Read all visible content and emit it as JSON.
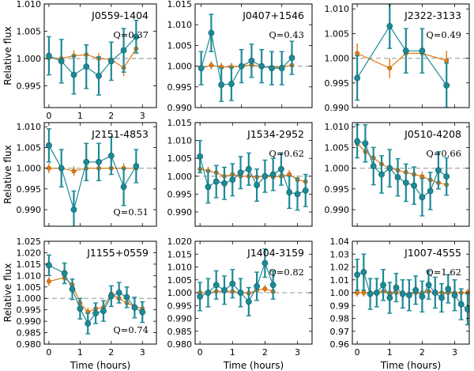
{
  "figure": {
    "ylabel": "Relative flux",
    "xlabel": "Time (hours)",
    "colors": {
      "data": "#1c8a96",
      "model": "#e07a12",
      "reference": "#aaaaaa",
      "frame": "#000000"
    }
  },
  "chart_data": [
    {
      "type": "line",
      "title": "J0559-1404",
      "q_label": "Q=0.37",
      "ylim": [
        0.991,
        1.01
      ],
      "yticks": [
        "1.010",
        "1.005",
        "1.000",
        "0.995"
      ],
      "xlim": [
        -0.15,
        3.45
      ],
      "xticks": [
        "0",
        "1",
        "2",
        "3"
      ],
      "xlabel": "",
      "ylabel": "Relative flux",
      "series": [
        {
          "name": "observed",
          "x": [
            0,
            0.4,
            0.8,
            1.2,
            1.6,
            2.0,
            2.4,
            2.8
          ],
          "y": [
            1.0005,
            0.9995,
            0.997,
            0.9985,
            0.9968,
            0.9995,
            1.0015,
            1.004
          ],
          "err": [
            0.0035,
            0.004,
            0.0035,
            0.004,
            0.0035,
            0.0035,
            0.004,
            0.003
          ]
        },
        {
          "name": "model",
          "x": [
            0,
            0.4,
            0.8,
            1.2,
            1.6,
            2.0,
            2.4,
            2.8
          ],
          "y": [
            1.0001,
            1.0,
            1.0005,
            1.0007,
            1.0,
            0.9998,
            0.9983,
            1.0018
          ],
          "err": [
            0.001,
            0.001,
            0.001,
            0.0015,
            0.001,
            0.001,
            0.0015,
            0.001
          ]
        }
      ]
    },
    {
      "type": "line",
      "title": "J0407+1546",
      "q_label": "Q=0.43",
      "ylim": [
        0.99,
        1.015
      ],
      "yticks": [
        "1.015",
        "1.010",
        "1.005",
        "1.000",
        "0.995",
        "0.990"
      ],
      "xlim": [
        -0.15,
        2.75
      ],
      "xticks": [],
      "xlabel": "",
      "ylabel": "",
      "series": [
        {
          "name": "observed",
          "x": [
            0,
            0.25,
            0.5,
            0.75,
            1.0,
            1.25,
            1.5,
            1.75,
            2.0,
            2.25
          ],
          "y": [
            0.9995,
            1.008,
            0.9955,
            0.9957,
            1.0,
            1.0013,
            1.0,
            0.9995,
            0.9995,
            1.002
          ],
          "err": [
            0.004,
            0.0045,
            0.004,
            0.004,
            0.004,
            0.004,
            0.004,
            0.004,
            0.004,
            0.004
          ]
        },
        {
          "name": "model",
          "x": [
            0,
            0.25,
            0.5,
            0.75,
            1.0,
            1.25,
            1.5,
            1.75,
            2.0,
            2.25
          ],
          "y": [
            0.9995,
            1.0002,
            0.9998,
            0.9998,
            1.0,
            1.0003,
            0.9998,
            0.9997,
            0.9998,
            1.0002
          ],
          "err": [
            0.001,
            0.001,
            0.001,
            0.001,
            0.001,
            0.001,
            0.001,
            0.001,
            0.001,
            0.001
          ]
        }
      ]
    },
    {
      "type": "line",
      "title": "J2322-3133",
      "q_label": "Q=0.49",
      "ylim": [
        0.99,
        1.011
      ],
      "yticks": [
        "1.010",
        "1.005",
        "1.000",
        "0.995",
        "0.990"
      ],
      "xlim": [
        -0.15,
        3.45
      ],
      "xticks": [],
      "xlabel": "",
      "ylabel": "",
      "series": [
        {
          "name": "observed",
          "x": [
            0,
            1,
            1.5,
            2,
            2.75
          ],
          "y": [
            0.996,
            1.0065,
            1.0015,
            1.0015,
            0.9945
          ],
          "err": [
            0.0045,
            0.0045,
            0.0045,
            0.0045,
            0.0045
          ]
        },
        {
          "name": "model",
          "x": [
            0,
            1,
            1.5,
            2,
            2.75
          ],
          "y": [
            1.001,
            0.998,
            1.001,
            1.001,
            0.9995
          ],
          "err": [
            0.002,
            0.002,
            0.002,
            0.002,
            0.002
          ]
        }
      ]
    },
    {
      "type": "line",
      "title": "J2151-4853",
      "q_label": "Q=0.51",
      "ylim": [
        0.986,
        1.011
      ],
      "yticks": [
        "1.010",
        "1.005",
        "1.000",
        "0.995",
        "0.990"
      ],
      "xlim": [
        -0.15,
        3.45
      ],
      "xticks": [],
      "xlabel": "",
      "ylabel": "Relative flux",
      "series": [
        {
          "name": "observed",
          "x": [
            0,
            0.4,
            0.8,
            1.2,
            1.6,
            2.0,
            2.4,
            2.8
          ],
          "y": [
            1.0055,
            1.0,
            0.99,
            1.0015,
            1.0015,
            1.003,
            0.9955,
            1.0005
          ],
          "err": [
            0.004,
            0.0045,
            0.0045,
            0.0045,
            0.0045,
            0.0045,
            0.0045,
            0.004
          ]
        },
        {
          "name": "model",
          "x": [
            0,
            0.4,
            0.8,
            1.2,
            1.6,
            2.0,
            2.4,
            2.8
          ],
          "y": [
            1.0,
            1.0,
            0.9993,
            1.0,
            1.0,
            1.0,
            1.0,
            1.0
          ],
          "err": [
            0.0012,
            0.0012,
            0.0012,
            0.0012,
            0.0012,
            0.0012,
            0.0012,
            0.0012
          ]
        }
      ]
    },
    {
      "type": "line",
      "title": "J1534-2952",
      "q_label": "Q=0.62",
      "ylim": [
        0.986,
        1.015
      ],
      "yticks": [
        "1.015",
        "1.010",
        "1.005",
        "1.000",
        "0.995",
        "0.990"
      ],
      "xlim": [
        -0.15,
        3.45
      ],
      "xticks": [],
      "xlabel": "",
      "ylabel": "",
      "series": [
        {
          "name": "observed",
          "x": [
            0,
            0.25,
            0.5,
            0.75,
            1.0,
            1.25,
            1.5,
            1.75,
            2.0,
            2.25,
            2.5,
            2.75,
            3.0,
            3.25
          ],
          "y": [
            1.0055,
            0.997,
            0.9985,
            0.998,
            0.999,
            1.001,
            1.002,
            0.9975,
            1.0,
            1.0005,
            1.002,
            0.9955,
            0.995,
            0.996
          ],
          "err": [
            0.0045,
            0.0045,
            0.0045,
            0.0045,
            0.0045,
            0.0045,
            0.0045,
            0.0045,
            0.0045,
            0.0045,
            0.0045,
            0.0045,
            0.0045,
            0.0045
          ]
        },
        {
          "name": "model",
          "x": [
            0,
            0.25,
            0.5,
            0.75,
            1.0,
            1.25,
            1.5,
            1.75,
            2.0,
            2.25,
            2.5,
            2.75,
            3.0,
            3.25
          ],
          "y": [
            1.002,
            1.0015,
            1.001,
            1.0,
            1.0005,
            1.0,
            1.0,
            0.9998,
            1.0,
            0.9998,
            1.0,
            1.0005,
            0.999,
            0.9985
          ],
          "err": [
            0.0012,
            0.0012,
            0.0012,
            0.0012,
            0.0012,
            0.0012,
            0.0012,
            0.0012,
            0.0012,
            0.0012,
            0.0012,
            0.0012,
            0.0012,
            0.0012
          ]
        }
      ]
    },
    {
      "type": "line",
      "title": "J0510-4208",
      "q_label": "Q=0.66",
      "ylim": [
        0.986,
        1.011
      ],
      "yticks": [
        "1.010",
        "1.005",
        "1.000",
        "0.995",
        "0.990"
      ],
      "xlim": [
        -0.15,
        3.45
      ],
      "xticks": [],
      "xlabel": "",
      "ylabel": "",
      "series": [
        {
          "name": "observed",
          "x": [
            0,
            0.25,
            0.5,
            0.75,
            1.0,
            1.25,
            1.5,
            1.75,
            2.0,
            2.25,
            2.5,
            2.75
          ],
          "y": [
            1.0065,
            1.006,
            1.0005,
            0.9985,
            1.0,
            0.9978,
            0.9965,
            0.9958,
            0.993,
            0.9945,
            0.9995,
            0.998
          ],
          "err": [
            0.004,
            0.0045,
            0.0045,
            0.0045,
            0.0045,
            0.0045,
            0.0045,
            0.0045,
            0.0045,
            0.0045,
            0.0045,
            0.0045
          ]
        },
        {
          "name": "model",
          "x": [
            0,
            0.25,
            0.5,
            0.75,
            1.0,
            1.25,
            1.5,
            1.75,
            2.0,
            2.25,
            2.5,
            2.75
          ],
          "y": [
            1.006,
            1.004,
            1.0025,
            1.001,
            1.0,
            0.9995,
            0.999,
            0.9985,
            0.998,
            0.9972,
            0.9965,
            0.996
          ],
          "err": [
            0.0012,
            0.0012,
            0.0012,
            0.0012,
            0.0012,
            0.0012,
            0.0012,
            0.0012,
            0.0012,
            0.0012,
            0.0012,
            0.0012
          ]
        }
      ]
    },
    {
      "type": "line",
      "title": "J1155+0559",
      "q_label": "Q=0.74",
      "ylim": [
        0.98,
        1.025
      ],
      "yticks": [
        "1.025",
        "1.020",
        "1.015",
        "1.010",
        "1.005",
        "1.000",
        "0.995",
        "0.990",
        "0.985",
        "0.980"
      ],
      "xlim": [
        -0.15,
        3.45
      ],
      "xticks": [
        "0",
        "1",
        "2",
        "3"
      ],
      "xlabel": "Time (hours)",
      "ylabel": "Relative flux",
      "series": [
        {
          "name": "observed",
          "x": [
            0,
            0.5,
            0.75,
            1.0,
            1.25,
            1.5,
            1.75,
            2.0,
            2.25,
            2.5,
            2.75,
            3.0
          ],
          "y": [
            1.0145,
            1.011,
            1.004,
            0.9955,
            0.989,
            0.9935,
            0.9945,
            1.001,
            1.0025,
            1.0005,
            0.996,
            0.994
          ],
          "err": [
            0.0045,
            0.0045,
            0.0045,
            0.0045,
            0.0045,
            0.0045,
            0.0045,
            0.0045,
            0.0045,
            0.0045,
            0.0045,
            0.0045
          ]
        },
        {
          "name": "model",
          "x": [
            0,
            0.5,
            0.75,
            1.0,
            1.25,
            1.5,
            1.75,
            2.0,
            2.25,
            2.5,
            2.75,
            3.0
          ],
          "y": [
            1.0075,
            1.009,
            1.006,
            0.998,
            0.994,
            0.9955,
            0.996,
            1.002,
            1.0,
            0.998,
            0.9965,
            0.9955
          ],
          "err": [
            0.002,
            0.002,
            0.002,
            0.002,
            0.002,
            0.002,
            0.002,
            0.002,
            0.002,
            0.002,
            0.002,
            0.002
          ]
        }
      ]
    },
    {
      "type": "line",
      "title": "J1404-3159",
      "q_label": "Q=0.82",
      "ylim": [
        0.98,
        1.02
      ],
      "yticks": [
        "1.020",
        "1.015",
        "1.010",
        "1.005",
        "1.000",
        "0.995",
        "0.990",
        "0.985",
        "0.980"
      ],
      "xlim": [
        -0.15,
        3.45
      ],
      "xticks": [
        "0",
        "1",
        "2",
        "3"
      ],
      "xlabel": "Time (hours)",
      "ylabel": "",
      "series": [
        {
          "name": "observed",
          "x": [
            0,
            0.25,
            0.5,
            0.75,
            1.0,
            1.25,
            1.5,
            1.75,
            2.0,
            2.25
          ],
          "y": [
            0.9985,
            1.0,
            1.003,
            1.001,
            1.0035,
            1.0,
            0.9965,
            1.0025,
            1.0115,
            1.003
          ],
          "err": [
            0.0055,
            0.0055,
            0.0055,
            0.0055,
            0.0055,
            0.0055,
            0.0055,
            0.0055,
            0.0055,
            0.0055
          ]
        },
        {
          "name": "model",
          "x": [
            0,
            0.25,
            0.5,
            0.75,
            1.0,
            1.25,
            1.5,
            1.75,
            2.0,
            2.25
          ],
          "y": [
            1.0,
            1.0,
            1.0005,
            1.0005,
            1.0005,
            1.0,
            0.9998,
            1.001,
            1.0015,
            1.0005
          ],
          "err": [
            0.0015,
            0.0015,
            0.0015,
            0.0015,
            0.0015,
            0.0015,
            0.0015,
            0.0015,
            0.0015,
            0.0015
          ]
        }
      ]
    },
    {
      "type": "line",
      "title": "J1007-4555",
      "q_label": "Q=1.62",
      "ylim": [
        0.96,
        1.04
      ],
      "yticks": [
        "1.04",
        "1.03",
        "1.02",
        "1.01",
        "1.00",
        "0.99",
        "0.98",
        "0.97",
        "0.96"
      ],
      "xlim": [
        -0.15,
        3.45
      ],
      "xticks": [
        "0",
        "1",
        "2",
        "3"
      ],
      "xlabel": "Time (hours)",
      "ylabel": "",
      "series": [
        {
          "name": "observed",
          "x": [
            0,
            0.2,
            0.4,
            0.6,
            0.8,
            1.0,
            1.2,
            1.4,
            1.6,
            1.8,
            2.0,
            2.2,
            2.4,
            2.6,
            2.8,
            3.0,
            3.2,
            3.4
          ],
          "y": [
            1.014,
            1.016,
            0.999,
            1.0,
            1.006,
            0.996,
            1.004,
            0.999,
            0.998,
            1.002,
            0.997,
            1.006,
            1.0,
            0.996,
            1.003,
            0.998,
            0.991,
            0.987
          ],
          "err": [
            0.012,
            0.014,
            0.012,
            0.011,
            0.012,
            0.012,
            0.011,
            0.011,
            0.012,
            0.011,
            0.012,
            0.011,
            0.012,
            0.011,
            0.011,
            0.012,
            0.012,
            0.012
          ]
        },
        {
          "name": "model",
          "x": [
            0,
            0.2,
            0.4,
            0.6,
            0.8,
            1.0,
            1.2,
            1.4,
            1.6,
            1.8,
            2.0,
            2.2,
            2.4,
            2.6,
            2.8,
            3.0,
            3.2,
            3.4
          ],
          "y": [
            1.0,
            1.0,
            1.0,
            1.0,
            1.001,
            1.0,
            1.0,
            1.0,
            0.999,
            1.0,
            1.0,
            1.001,
            1.0,
            1.0,
            1.0,
            1.0,
            1.0,
            1.0
          ],
          "err": [
            0.003,
            0.003,
            0.003,
            0.003,
            0.003,
            0.003,
            0.003,
            0.003,
            0.003,
            0.003,
            0.003,
            0.003,
            0.003,
            0.003,
            0.003,
            0.003,
            0.003,
            0.003
          ]
        }
      ]
    }
  ]
}
